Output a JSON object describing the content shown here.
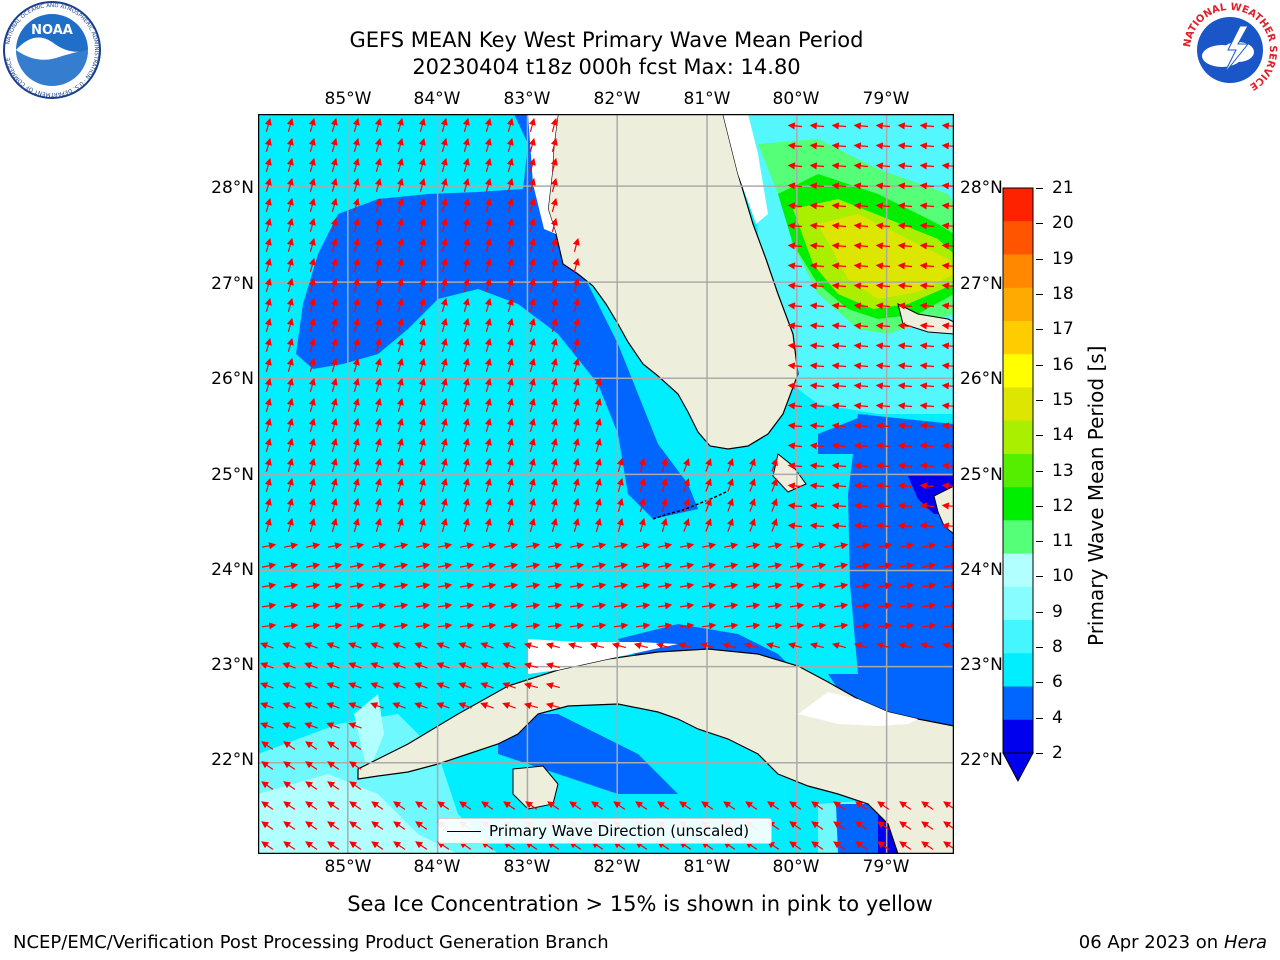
{
  "title": {
    "line1": "GEFS MEAN Key West Primary Wave Mean Period",
    "line2": "20230404 t18z 000h fcst   Max: 14.80"
  },
  "axes": {
    "x_ticks": [
      "85°W",
      "84°W",
      "83°W",
      "82°W",
      "81°W",
      "80°W",
      "79°W"
    ],
    "y_ticks": [
      "28°N",
      "27°N",
      "26°N",
      "25°N",
      "24°N",
      "23°N",
      "22°N"
    ]
  },
  "legend": {
    "label": "Primary Wave Direction (unscaled)",
    "color": "#000000"
  },
  "colorbar": {
    "label": "Primary Wave Mean Period [s]",
    "ticks": [
      "21",
      "20",
      "19",
      "18",
      "17",
      "16",
      "15",
      "14",
      "13",
      "12",
      "11",
      "10",
      "9",
      "8",
      "6",
      "4",
      "2"
    ],
    "colors": [
      "#0000ee",
      "#0066ff",
      "#00eeff",
      "#44f6ff",
      "#88fdff",
      "#b2ffff",
      "#55ff77",
      "#00ee00",
      "#55ee00",
      "#aaee00",
      "#dde600",
      "#ffff00",
      "#ffcc00",
      "#ffaa00",
      "#ff8800",
      "#ff5500",
      "#ff2200",
      "#ff0000"
    ]
  },
  "note": "Sea Ice Concentration > 15% is shown in pink to yellow",
  "footer": {
    "left": "NCEP/EMC/Verification Post Processing Product Generation Branch",
    "right_date": "06 Apr 2023 on ",
    "right_host": "Hera"
  },
  "logos": {
    "noaa_text": "NOAA",
    "noaa_ring": "NATIONAL OCEANIC AND ATMOSPHERIC ADMINISTRATION · U.S. DEPARTMENT OF COMMERCE",
    "nws_ring": "NATIONAL WEATHER SERVICE"
  },
  "map_data": {
    "extent": {
      "lon": [
        -86.0,
        -78.25
      ],
      "lat": [
        21.05,
        28.75
      ]
    },
    "ocean_base_color": "#00eeff",
    "land_color": "#eeeedd",
    "arrow_color": "#ff0000",
    "grid_color": "#aaaaaa",
    "primary_wave_direction": "arrows over ocean, unscaled"
  }
}
